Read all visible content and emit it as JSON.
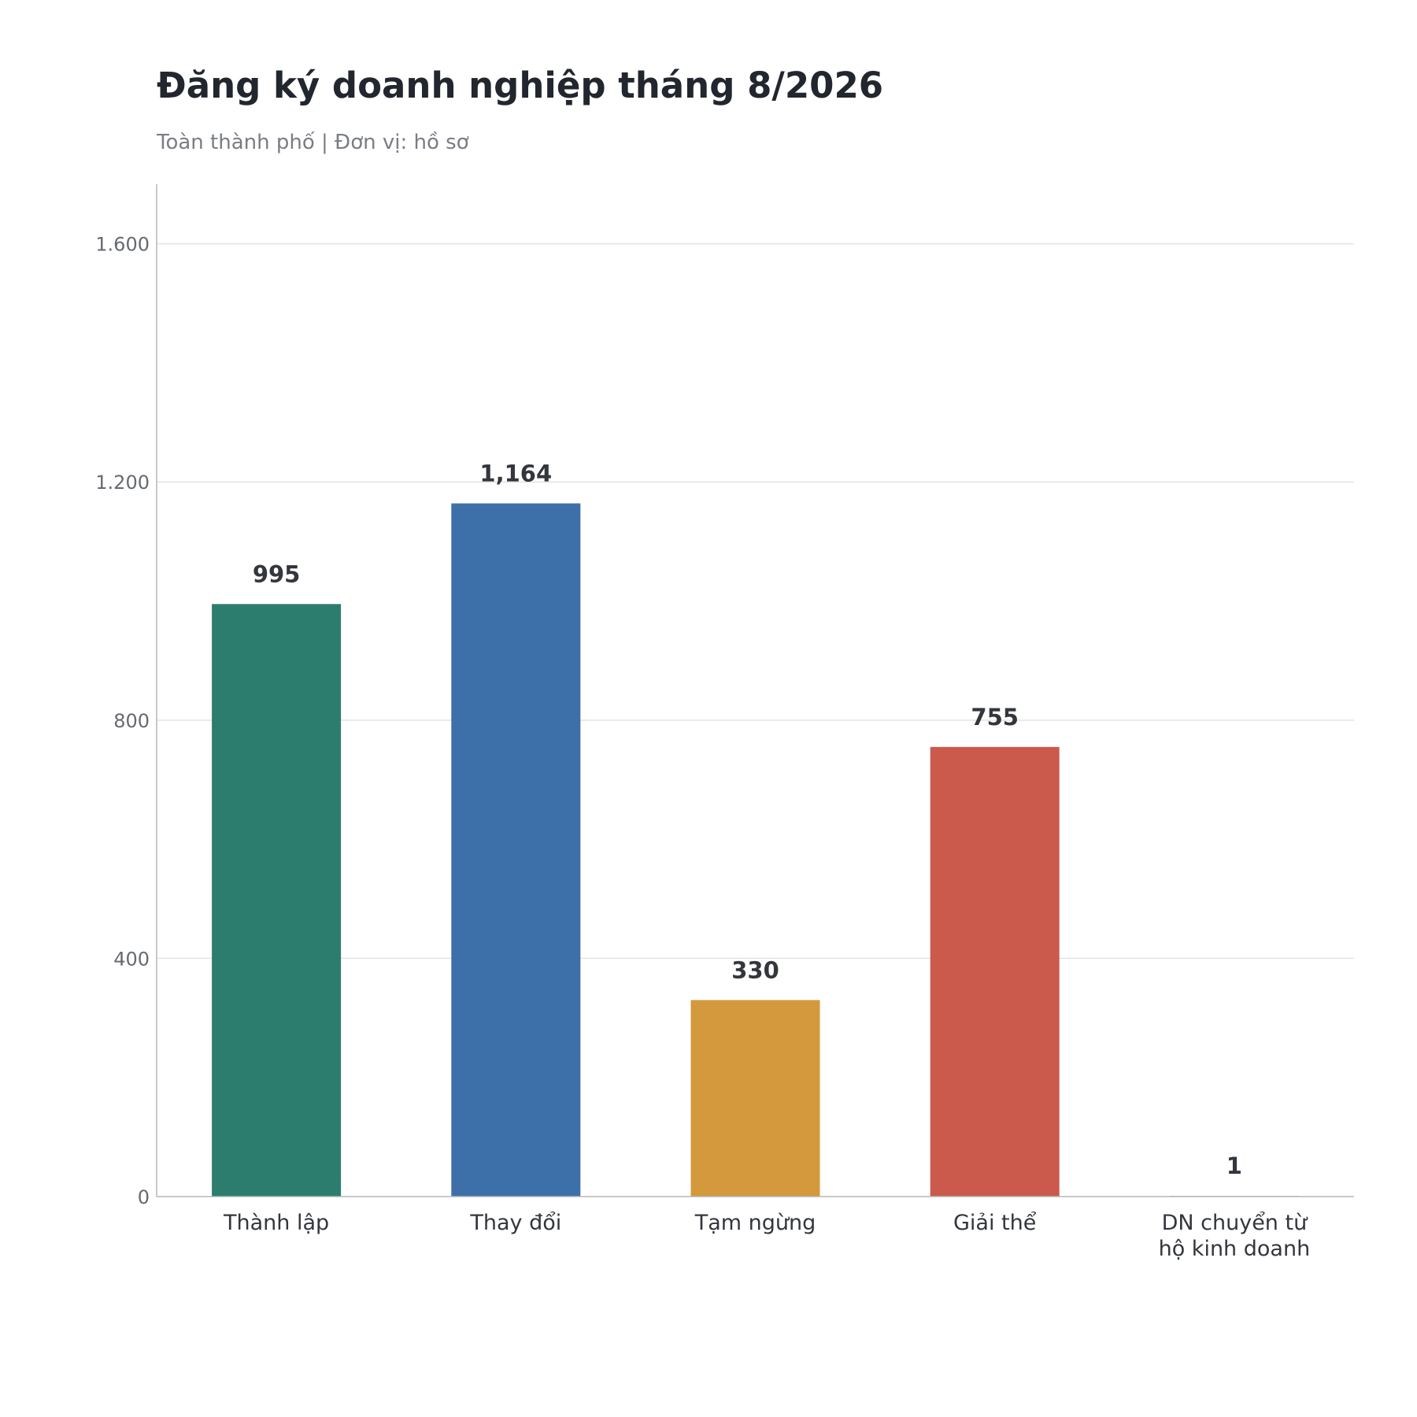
{
  "title": "Đăng ký doanh nghiệp tháng 8/2026",
  "subtitle": "Toàn thành phố  |  Đơn vị: hồ sơ",
  "chart_data": {
    "type": "bar",
    "title": "Đăng ký doanh nghiệp tháng 8/2026",
    "subtitle": "Toàn thành phố  |  Đơn vị: hồ sơ",
    "xlabel": "",
    "ylabel": "",
    "categories": [
      [
        "Thành lập"
      ],
      [
        "Thay đổi"
      ],
      [
        "Tạm ngừng"
      ],
      [
        "Giải thể"
      ],
      [
        "DN chuyển từ",
        "hộ kinh doanh"
      ]
    ],
    "values": [
      995,
      1164,
      330,
      755,
      1
    ],
    "value_labels": [
      "995",
      "1,164",
      "330",
      "755",
      "1"
    ],
    "colors": [
      "#2c7d6d",
      "#3d6fa8",
      "#d4993c",
      "#cb5a4c",
      "#8a8d92"
    ],
    "ylim": [
      0,
      1700
    ],
    "yticks": [
      0,
      400,
      800,
      1200,
      1600
    ],
    "ytick_labels": [
      "0",
      "400",
      "800",
      "1.200",
      "1.600"
    ],
    "grid": true,
    "legend": "none"
  }
}
